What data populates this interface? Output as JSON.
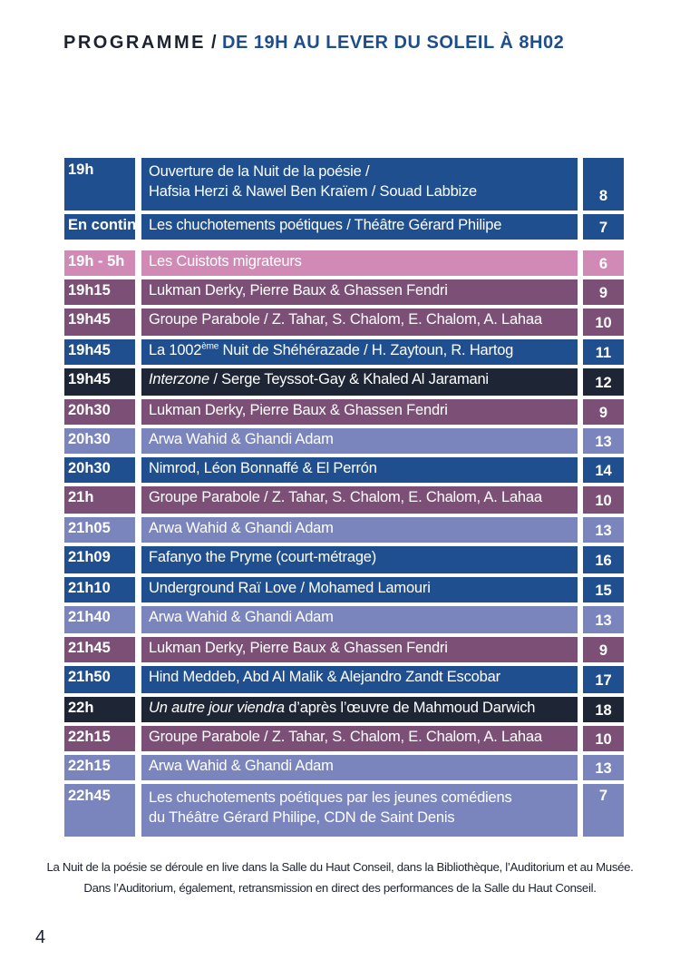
{
  "header": {
    "prefix": "PROGRAMME",
    "separator": "/",
    "subtitle": "DE  19H AU LEVER DU SOLEIL À 8H02"
  },
  "colors": {
    "blue": "#1f4f8e",
    "purple": "#7b4f76",
    "pink": "#d18ab5",
    "lavender": "#7a84bd",
    "navy": "#1e2535"
  },
  "rows": [
    {
      "time": "19h",
      "title": [
        "Ouverture de la Nuit de la poésie /",
        "Hafsia Herzi & Nawel Ben Kraïem / Souad Labbize"
      ],
      "page": "8",
      "color": "blue"
    },
    {
      "time": "En continu",
      "title": [
        "Les chuchotements poétiques / Théâtre Gérard Philipe"
      ],
      "page": "7",
      "color": "blue"
    },
    {
      "time": "19h - 5h",
      "title": [
        "Les Cuistots migrateurs"
      ],
      "page": "6",
      "color": "pink"
    },
    {
      "time": "19h15",
      "title": [
        "Lukman Derky, Pierre Baux & Ghassen Fendri"
      ],
      "page": "9",
      "color": "purple"
    },
    {
      "time": "19h45",
      "title": [
        "Groupe Parabole / Z. Tahar, S. Chalom, E. Chalom, A. Lahaa"
      ],
      "page": "10",
      "color": "purple"
    },
    {
      "time": "19h45",
      "title_pre": "La 1002",
      "title_sup": "ème",
      "title_post": " Nuit de Shéhérazade / H. Zaytoun, R. Hartog",
      "page": "11",
      "color": "blue"
    },
    {
      "time": "19h45",
      "title_italic": "Interzone",
      "title_rest": " / Serge Teyssot-Gay & Khaled Al Jaramani",
      "page": "12",
      "color": "navy"
    },
    {
      "time": "20h30",
      "title": [
        "Lukman Derky, Pierre Baux & Ghassen Fendri"
      ],
      "page": "9",
      "color": "purple"
    },
    {
      "time": "20h30",
      "title": [
        "Arwa Wahid & Ghandi Adam"
      ],
      "page": "13",
      "color": "lavender"
    },
    {
      "time": "20h30",
      "title": [
        "Nimrod, Léon Bonnaffé & El Perrón"
      ],
      "page": "14",
      "color": "blue"
    },
    {
      "time": "21h",
      "title": [
        "Groupe Parabole / Z. Tahar, S. Chalom, E. Chalom, A. Lahaa"
      ],
      "page": "10",
      "color": "purple"
    },
    {
      "time": "21h05",
      "title": [
        "Arwa Wahid & Ghandi Adam"
      ],
      "page": "13",
      "color": "lavender"
    },
    {
      "time": "21h09",
      "title": [
        "Fafanyo the Pryme (court-métrage)"
      ],
      "page": "16",
      "color": "blue"
    },
    {
      "time": "21h10",
      "title": [
        "Underground Raï Love / Mohamed Lamouri"
      ],
      "page": "15",
      "color": "blue"
    },
    {
      "time": "21h40",
      "title": [
        "Arwa Wahid & Ghandi Adam"
      ],
      "page": "13",
      "color": "lavender"
    },
    {
      "time": "21h45",
      "title": [
        "Lukman Derky, Pierre Baux & Ghassen Fendri"
      ],
      "page": "9",
      "color": "purple"
    },
    {
      "time": "21h50",
      "title": [
        "Hind Meddeb, Abd Al Malik & Alejandro Zandt Escobar"
      ],
      "page": "17",
      "color": "blue"
    },
    {
      "time": "22h",
      "title_italic": "Un autre jour viendra",
      "title_rest": " d’après l’œuvre de Mahmoud Darwich",
      "page": "18",
      "color": "navy"
    },
    {
      "time": "22h15",
      "title": [
        "Groupe Parabole / Z. Tahar, S. Chalom, E. Chalom, A. Lahaa"
      ],
      "page": "10",
      "color": "purple"
    },
    {
      "time": "22h15",
      "title": [
        "Arwa Wahid & Ghandi Adam"
      ],
      "page": "13",
      "color": "lavender"
    },
    {
      "time": "22h45",
      "title": [
        "Les chuchotements poétiques par les jeunes comédiens",
        "du  Théâtre Gérard Philipe, CDN de Saint Denis"
      ],
      "page": "7",
      "color": "lavender"
    }
  ],
  "footnote": [
    "La Nuit de la poésie se déroule en live dans la Salle du Haut Conseil, dans la Bibliothèque, l’Auditorium et au Musée.",
    "Dans l’Auditorium, également, retransmission en direct des performances de la Salle du Haut Conseil."
  ],
  "page_number": "4"
}
